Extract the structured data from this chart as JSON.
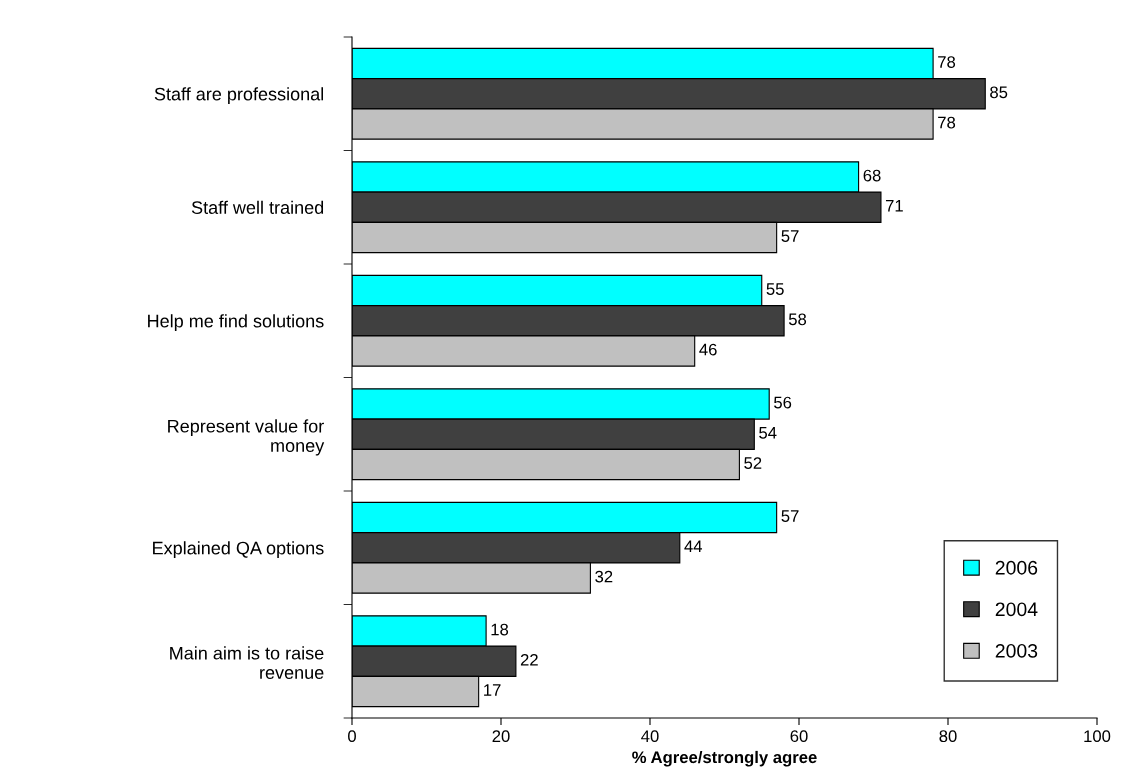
{
  "chart_data": {
    "type": "bar",
    "orientation": "horizontal",
    "xlabel": "% Agree/strongly agree",
    "categories": [
      "Staff are professional",
      "Staff well trained",
      "Help me find solutions",
      "Represent value for\nmoney",
      "Explained QA options",
      "Main aim is to raise\nrevenue"
    ],
    "series": [
      {
        "name": "2006",
        "color": "#00ffff",
        "values": [
          78,
          68,
          55,
          56,
          57,
          18
        ]
      },
      {
        "name": "2004",
        "color": "#404040",
        "values": [
          85,
          71,
          58,
          54,
          44,
          22
        ]
      },
      {
        "name": "2003",
        "color": "#c0c0c0",
        "values": [
          78,
          57,
          46,
          52,
          32,
          17
        ]
      }
    ],
    "xlim": [
      0,
      100
    ],
    "xticks": [
      0,
      20,
      40,
      60,
      80,
      100
    ],
    "data_labels": true,
    "grid": false,
    "legend": "bottom right"
  }
}
